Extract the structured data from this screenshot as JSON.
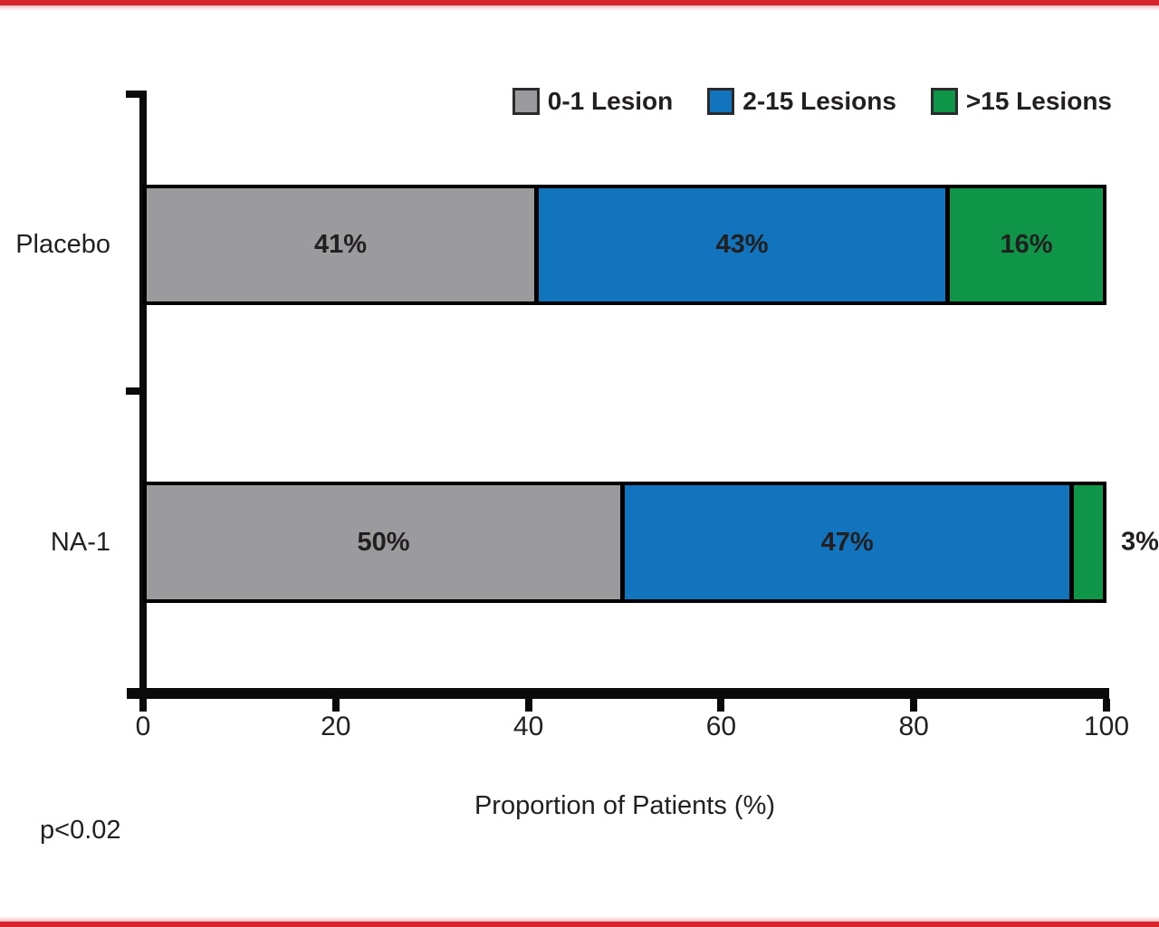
{
  "page": {
    "accent_rule_color": "#D7232B",
    "background": "#ffffff"
  },
  "chart_data": {
    "type": "bar",
    "orientation": "horizontal",
    "stacked": true,
    "categories": [
      "Placebo",
      "NA-1"
    ],
    "series": [
      {
        "name": "0-1 Lesion",
        "color": "#9B9B9E",
        "values": [
          41,
          50
        ]
      },
      {
        "name": "2-15 Lesions",
        "color": "#1274BC",
        "values": [
          43,
          47
        ]
      },
      {
        "name": ">15 Lesions",
        "color": "#0E9548",
        "values": [
          16,
          3
        ]
      }
    ],
    "value_suffix": "%",
    "xlabel": "Proportion of Patients (%)",
    "xticks": [
      0,
      20,
      40,
      60,
      80,
      100
    ],
    "xlim": [
      0,
      100
    ],
    "grid": false,
    "legend_position": "top-right",
    "annotation": "p<0.02",
    "bar_border_color": "#000000",
    "label_color": "#231F20",
    "small_segment_label_outside_below_pct": 5
  }
}
